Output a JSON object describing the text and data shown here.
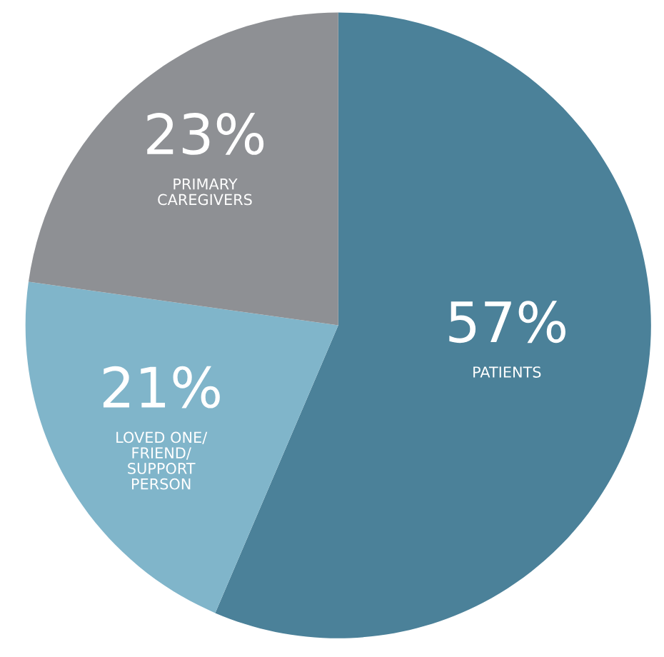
{
  "chart_data": {
    "type": "pie",
    "categories": [
      "PATIENTS",
      "LOVED ONE/\nFRIEND/\nSUPPORT\nPERSON",
      "PRIMARY\nCAREGIVERS"
    ],
    "values": [
      57,
      21,
      23
    ],
    "value_labels": [
      "57%",
      "21%",
      "23%"
    ],
    "colors": [
      "#4b8199",
      "#80b5ca",
      "#8e9094"
    ],
    "legend": false
  }
}
